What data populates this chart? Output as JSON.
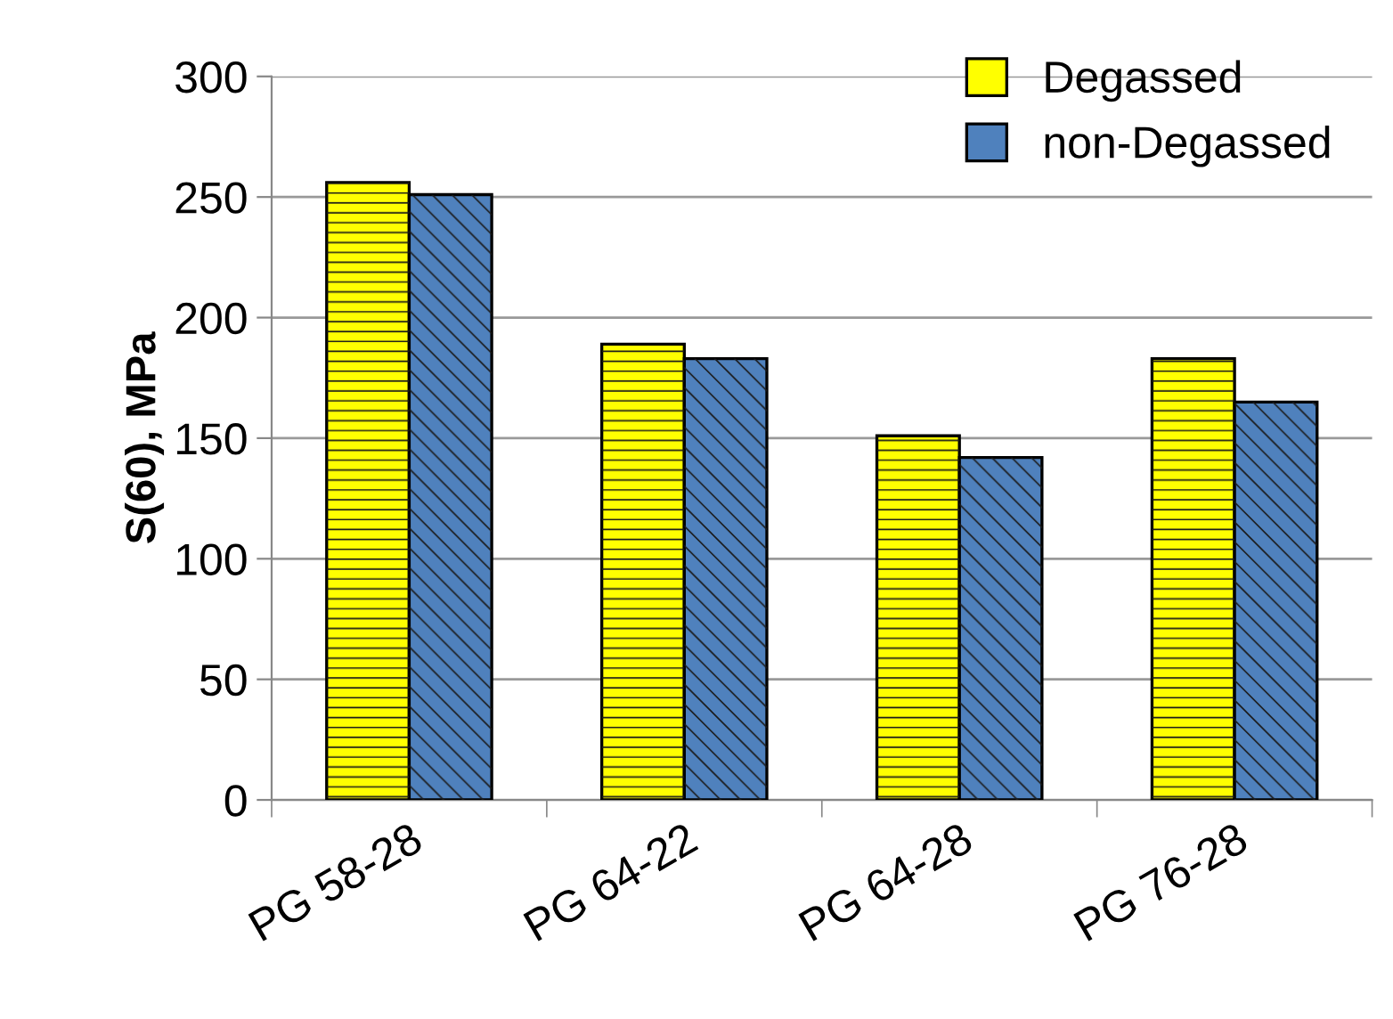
{
  "chart_data": {
    "type": "bar",
    "ylabel": "S(60), MPa",
    "categories": [
      "PG 58-28",
      "PG 64-22",
      "PG 64-28",
      "PG 76-28"
    ],
    "series": [
      {
        "name": "Degassed",
        "color": "#ffff00",
        "values": [
          256,
          189,
          151,
          183
        ]
      },
      {
        "name": "non-Degassed",
        "color": "#4f81bd",
        "values": [
          251,
          183,
          142,
          165
        ]
      }
    ],
    "ylim": [
      0,
      300
    ],
    "yticks": [
      0,
      50,
      100,
      150,
      200,
      250,
      300
    ],
    "grid": "y",
    "legend": "top right"
  }
}
